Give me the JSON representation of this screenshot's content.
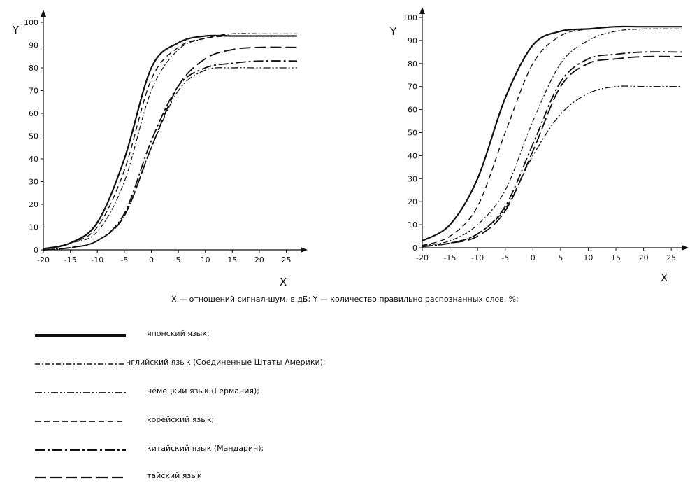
{
  "caption": "X — отношений сигнал-шум, в дБ; Y — количество правильно распознанных слов, %;",
  "chart_data": [
    {
      "type": "line",
      "xlabel": "X",
      "ylabel": "Y",
      "xlim": [
        -20,
        27
      ],
      "ylim": [
        0,
        100
      ],
      "x_ticks": [
        "-20",
        "-15",
        "-10",
        "-5",
        "0",
        "5",
        "10",
        "15",
        "20",
        "25"
      ],
      "y_ticks": [
        "0",
        "10",
        "20",
        "30",
        "40",
        "50",
        "60",
        "70",
        "80",
        "90",
        "100"
      ],
      "series": [
        {
          "key": "japanese",
          "style": "solid-thick",
          "x": [
            -20,
            -15,
            -10,
            -5,
            0,
            5,
            10,
            15,
            20,
            27
          ],
          "y": [
            0.5,
            3,
            12,
            40,
            80,
            91,
            94,
            94,
            94,
            94
          ]
        },
        {
          "key": "english",
          "style": "dash-dot",
          "x": [
            -20,
            -15,
            -10,
            -5,
            0,
            5,
            10,
            15,
            20,
            27
          ],
          "y": [
            0.5,
            3,
            8,
            30,
            70,
            88,
            93,
            95,
            95,
            95
          ]
        },
        {
          "key": "german",
          "style": "dash-dot-dot",
          "x": [
            -20,
            -15,
            -10,
            -5,
            0,
            5,
            10,
            15,
            20,
            27
          ],
          "y": [
            0,
            1,
            4,
            15,
            45,
            70,
            79,
            80,
            80,
            80
          ]
        },
        {
          "key": "korean",
          "style": "dashed",
          "x": [
            -20,
            -15,
            -10,
            -5,
            0,
            5,
            10,
            15,
            20,
            27
          ],
          "y": [
            0.5,
            3,
            10,
            35,
            75,
            89,
            93,
            94,
            94,
            94
          ]
        },
        {
          "key": "chinese",
          "style": "long-dash-dot",
          "x": [
            -20,
            -15,
            -10,
            -5,
            0,
            5,
            10,
            15,
            20,
            27
          ],
          "y": [
            0,
            1,
            4,
            16,
            48,
            72,
            80,
            82,
            83,
            83
          ]
        },
        {
          "key": "thai",
          "style": "long-dash",
          "x": [
            -20,
            -15,
            -10,
            -5,
            0,
            5,
            10,
            15,
            20,
            27
          ],
          "y": [
            0,
            1,
            4,
            15,
            45,
            72,
            84,
            88,
            89,
            89
          ]
        }
      ]
    },
    {
      "type": "line",
      "xlabel": "X",
      "ylabel": "Y",
      "xlim": [
        -20,
        27
      ],
      "ylim": [
        0,
        100
      ],
      "x_ticks": [
        "-20",
        "-15",
        "-10",
        "-5",
        "0",
        "5",
        "10",
        "15",
        "20",
        "25"
      ],
      "y_ticks": [
        "0",
        "10",
        "20",
        "30",
        "40",
        "50",
        "60",
        "70",
        "80",
        "90",
        "100"
      ],
      "series": [
        {
          "key": "japanese",
          "style": "solid-thick",
          "x": [
            -20,
            -15,
            -10,
            -5,
            0,
            5,
            10,
            15,
            20,
            27
          ],
          "y": [
            3,
            10,
            30,
            65,
            88,
            94,
            95,
            96,
            96,
            96
          ]
        },
        {
          "key": "english",
          "style": "dash-dot",
          "x": [
            -20,
            -15,
            -10,
            -5,
            0,
            5,
            10,
            15,
            20,
            27
          ],
          "y": [
            1,
            3,
            10,
            25,
            55,
            80,
            90,
            94,
            95,
            95
          ]
        },
        {
          "key": "german",
          "style": "dash-dot-dot",
          "x": [
            -20,
            -15,
            -10,
            -5,
            0,
            5,
            10,
            15,
            20,
            27
          ],
          "y": [
            0.5,
            2,
            6,
            17,
            40,
            58,
            67,
            70,
            70,
            70
          ]
        },
        {
          "key": "korean",
          "style": "dashed",
          "x": [
            -20,
            -15,
            -10,
            -5,
            0,
            5,
            10,
            15,
            20,
            27
          ],
          "y": [
            1,
            5,
            18,
            50,
            80,
            92,
            95,
            96,
            96,
            96
          ]
        },
        {
          "key": "chinese",
          "style": "long-dash-dot",
          "x": [
            -20,
            -15,
            -10,
            -5,
            0,
            5,
            10,
            15,
            20,
            27
          ],
          "y": [
            0.5,
            2,
            6,
            18,
            45,
            72,
            82,
            84,
            85,
            85
          ]
        },
        {
          "key": "thai",
          "style": "long-dash",
          "x": [
            -20,
            -15,
            -10,
            -5,
            0,
            5,
            10,
            15,
            20,
            27
          ],
          "y": [
            0.5,
            2,
            5,
            16,
            42,
            70,
            80,
            82,
            83,
            83
          ]
        }
      ]
    }
  ],
  "legend": [
    {
      "key": "japanese",
      "label": "японский язык;"
    },
    {
      "key": "english",
      "label": "нглийский язык (Соединенные Штаты Америки);"
    },
    {
      "key": "german",
      "label": "немецкий язык (Германия);"
    },
    {
      "key": "korean",
      "label": "корейский язык;"
    },
    {
      "key": "chinese",
      "label": "китайский язык (Мандарин);"
    },
    {
      "key": "thai",
      "label": "тайский язык"
    }
  ]
}
